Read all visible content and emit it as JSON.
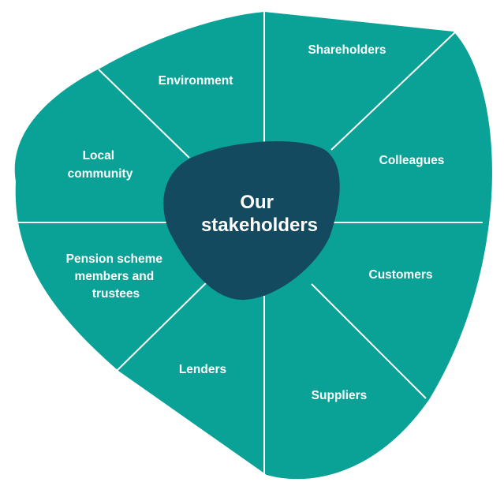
{
  "colors": {
    "outer_fill": "#0aa196",
    "divider": "#ffffff",
    "center_fill": "#134a60",
    "text": "#ffffff"
  },
  "center": {
    "lines": [
      "Our",
      "stakeholders"
    ]
  },
  "segments": [
    {
      "id": "shareholders",
      "lines": [
        "Shareholders"
      ]
    },
    {
      "id": "colleagues",
      "lines": [
        "Colleagues"
      ]
    },
    {
      "id": "customers",
      "lines": [
        "Customers"
      ]
    },
    {
      "id": "suppliers",
      "lines": [
        "Suppliers"
      ]
    },
    {
      "id": "lenders",
      "lines": [
        "Lenders"
      ]
    },
    {
      "id": "pension",
      "lines": [
        "Pension scheme",
        "members and",
        "trustees"
      ]
    },
    {
      "id": "local-community",
      "lines": [
        "Local",
        "community"
      ]
    },
    {
      "id": "environment",
      "lines": [
        "Environment"
      ]
    }
  ]
}
